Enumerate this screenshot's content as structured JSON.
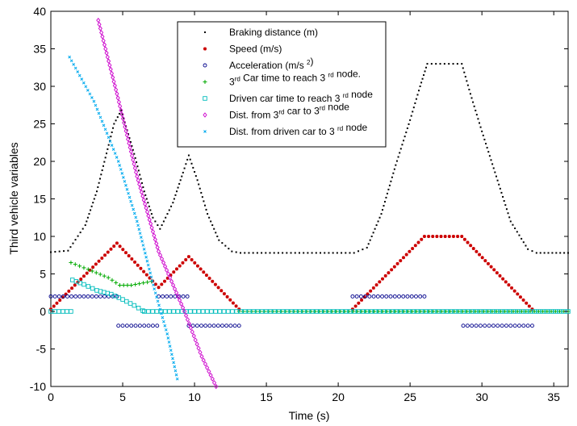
{
  "chart_data": {
    "type": "scatter",
    "title": "",
    "xlabel": "Time (s)",
    "ylabel": "Third vehicle variables",
    "xlim": [
      0,
      36
    ],
    "ylim": [
      -10,
      40
    ],
    "xticks": [
      0,
      5,
      10,
      15,
      20,
      25,
      30,
      35
    ],
    "yticks": [
      -10,
      -5,
      0,
      5,
      10,
      15,
      20,
      25,
      30,
      35,
      40
    ],
    "grid": false,
    "legend_position": "top-center",
    "legend": [
      {
        "id": "braking",
        "parts": [
          {
            "t": "Braking distance (m)"
          }
        ]
      },
      {
        "id": "speed",
        "parts": [
          {
            "t": "Speed (m/s)"
          }
        ]
      },
      {
        "id": "accel",
        "parts": [
          {
            "t": "Acceleration (m/s "
          },
          {
            "t": "2",
            "sup": true
          },
          {
            "t": ")"
          }
        ]
      },
      {
        "id": "car3time",
        "parts": [
          {
            "t": "3"
          },
          {
            "t": "rd",
            "sup": true
          },
          {
            "t": " Car time to reach 3 "
          },
          {
            "t": "rd",
            "sup": true
          },
          {
            "t": " node."
          }
        ]
      },
      {
        "id": "driventime",
        "parts": [
          {
            "t": "Driven car time to reach 3 "
          },
          {
            "t": "rd",
            "sup": true
          },
          {
            "t": " node"
          }
        ]
      },
      {
        "id": "dist3",
        "parts": [
          {
            "t": "Dist. from 3"
          },
          {
            "t": "rd",
            "sup": true
          },
          {
            "t": " car to 3"
          },
          {
            "t": "rd",
            "sup": true
          },
          {
            "t": " node"
          }
        ]
      },
      {
        "id": "distdriven",
        "parts": [
          {
            "t": "Dist. from driven car to 3 "
          },
          {
            "t": "rd",
            "sup": true
          },
          {
            "t": " node"
          }
        ]
      }
    ],
    "series": [
      {
        "id": "braking",
        "color": "#000000",
        "marker": "dot",
        "segments": [
          [
            [
              0,
              7.9
            ],
            [
              1.2,
              8.1
            ],
            [
              2.4,
              11.5
            ],
            [
              3.2,
              16
            ],
            [
              3.8,
              20.5
            ],
            [
              4.4,
              25
            ],
            [
              4.9,
              26.8
            ],
            [
              5.8,
              21
            ],
            [
              6.5,
              16
            ],
            [
              7.1,
              12.5
            ],
            [
              7.6,
              11
            ],
            [
              8.5,
              14.5
            ],
            [
              9.2,
              18.5
            ],
            [
              9.6,
              20.8
            ],
            [
              10.2,
              17.5
            ],
            [
              10.9,
              13
            ],
            [
              11.7,
              9.5
            ],
            [
              12.6,
              8
            ],
            [
              13.2,
              7.8
            ],
            [
              21.1,
              7.8
            ],
            [
              22,
              8.5
            ],
            [
              23,
              13
            ],
            [
              24,
              19.5
            ],
            [
              25,
              25.5
            ],
            [
              25.7,
              30
            ],
            [
              26.2,
              33
            ],
            [
              28.6,
              33
            ],
            [
              29.2,
              29
            ],
            [
              30,
              24
            ],
            [
              31,
              18
            ],
            [
              32,
              12
            ],
            [
              33.2,
              8.3
            ],
            [
              33.8,
              7.8
            ],
            [
              36,
              7.8
            ]
          ]
        ]
      },
      {
        "id": "speed",
        "color": "#cc0000",
        "marker": "star",
        "segments": [
          [
            [
              0,
              0.3
            ],
            [
              4.6,
              9.1
            ],
            [
              7.5,
              3.2
            ],
            [
              9.6,
              7.3
            ],
            [
              13.1,
              0.3
            ]
          ],
          [
            [
              21,
              0.3
            ],
            [
              26,
              10
            ],
            [
              28.6,
              10
            ],
            [
              33.5,
              0.3
            ]
          ]
        ]
      },
      {
        "id": "accel",
        "color": "#00008b",
        "marker": "circle",
        "segments": [
          [
            [
              0,
              2
            ],
            [
              4.6,
              2
            ]
          ],
          [
            [
              4.7,
              -1.9
            ],
            [
              7.4,
              -1.9
            ]
          ],
          [
            [
              7.5,
              2
            ],
            [
              9.5,
              2
            ]
          ],
          [
            [
              9.6,
              -1.9
            ],
            [
              13.1,
              -1.9
            ]
          ],
          [
            [
              21,
              2
            ],
            [
              26,
              2
            ]
          ],
          [
            [
              28.7,
              -1.9
            ],
            [
              33.5,
              -1.9
            ]
          ]
        ]
      },
      {
        "id": "car3time",
        "color": "#00aa00",
        "marker": "plus",
        "segments": [
          [
            [
              1.4,
              6.5
            ],
            [
              2.6,
              5.6
            ],
            [
              4,
              4.5
            ],
            [
              4.8,
              3.5
            ],
            [
              5.6,
              3.5
            ],
            [
              7,
              4
            ]
          ],
          [
            [
              13.1,
              0
            ],
            [
              36,
              0
            ]
          ]
        ]
      },
      {
        "id": "driventime",
        "color": "#00bcbc",
        "marker": "square",
        "segments": [
          [
            [
              0,
              0
            ],
            [
              1.4,
              0
            ]
          ],
          [
            [
              1.5,
              4.2
            ],
            [
              2.3,
              3.6
            ],
            [
              3.2,
              2.8
            ],
            [
              4.2,
              2.3
            ],
            [
              5,
              1.6
            ],
            [
              5.8,
              0.8
            ],
            [
              6.4,
              0.1
            ]
          ],
          [
            [
              6.5,
              0
            ],
            [
              36,
              0
            ]
          ]
        ]
      },
      {
        "id": "dist3",
        "color": "#cc00cc",
        "marker": "diamond",
        "segments": [
          [
            [
              3.3,
              38.8
            ],
            [
              4.6,
              29
            ],
            [
              6,
              18
            ],
            [
              7.5,
              8
            ],
            [
              9.3,
              0
            ],
            [
              10.5,
              -6
            ],
            [
              11.5,
              -10
            ]
          ]
        ]
      },
      {
        "id": "distdriven",
        "color": "#00aaee",
        "marker": "x",
        "segments": [
          [
            [
              1.3,
              33.9
            ],
            [
              3,
              28
            ],
            [
              4.7,
              20
            ],
            [
              6,
              12
            ],
            [
              7.2,
              3
            ],
            [
              8.1,
              -3
            ],
            [
              8.8,
              -9
            ]
          ]
        ]
      }
    ]
  }
}
